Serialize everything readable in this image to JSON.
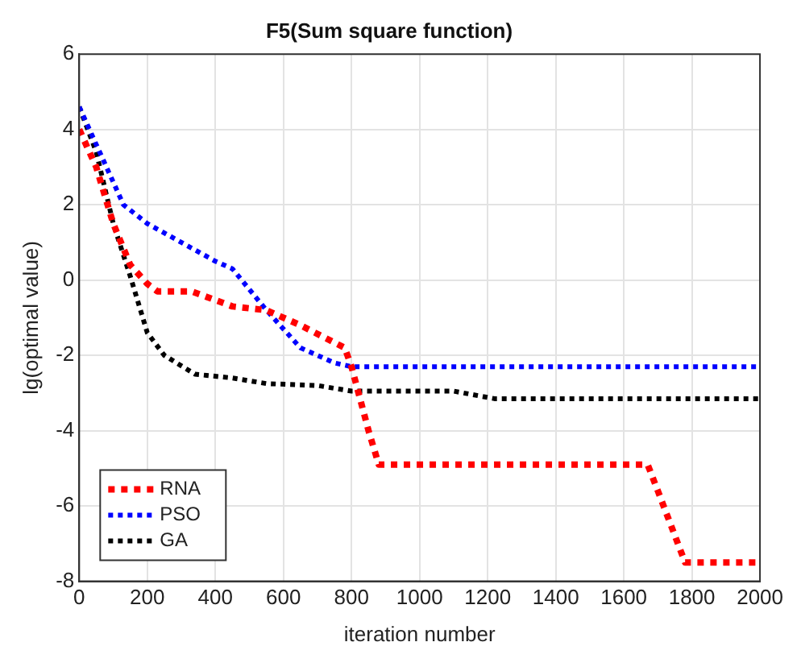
{
  "chart_data": {
    "type": "line",
    "title": "F5(Sum square function)",
    "xlabel": "iteration number",
    "ylabel": "lg(optimal value)",
    "xlim": [
      0,
      2000
    ],
    "xticks": [
      0,
      200,
      400,
      600,
      800,
      1000,
      1200,
      1400,
      1600,
      1800,
      2000
    ],
    "ylim": [
      -8,
      6
    ],
    "yticks": [
      -8,
      -6,
      -4,
      -2,
      0,
      2,
      4,
      6
    ],
    "grid": true,
    "legend": "bottom left",
    "line_style": "dotted",
    "marker": "none",
    "series": [
      {
        "name": "RNA",
        "color": "#ff0000",
        "x": [
          0,
          50,
          100,
          150,
          200,
          230,
          330,
          450,
          550,
          650,
          780,
          800,
          850,
          880,
          1670,
          1700,
          1780,
          2000
        ],
        "values": [
          4.0,
          3.0,
          1.5,
          0.4,
          -0.1,
          -0.3,
          -0.3,
          -0.7,
          -0.8,
          -1.2,
          -1.8,
          -2.3,
          -4.0,
          -4.9,
          -4.9,
          -5.6,
          -7.5,
          -7.5
        ]
      },
      {
        "name": "PSO",
        "color": "#0000ff",
        "x": [
          0,
          50,
          100,
          130,
          200,
          300,
          400,
          450,
          550,
          650,
          750,
          800,
          2000
        ],
        "values": [
          4.6,
          3.6,
          2.6,
          2.0,
          1.5,
          1.0,
          0.5,
          0.3,
          -0.8,
          -1.8,
          -2.2,
          -2.3,
          -2.3
        ]
      },
      {
        "name": "GA",
        "color": "#000000",
        "x": [
          0,
          50,
          100,
          150,
          200,
          250,
          340,
          450,
          550,
          700,
          800,
          1100,
          1220,
          2000
        ],
        "values": [
          4.6,
          3.4,
          1.5,
          0.1,
          -1.4,
          -2.0,
          -2.5,
          -2.6,
          -2.75,
          -2.8,
          -2.95,
          -2.95,
          -3.15,
          -3.15
        ]
      }
    ]
  }
}
